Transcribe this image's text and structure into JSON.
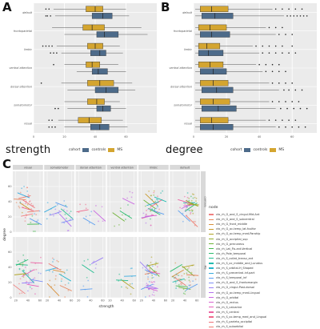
{
  "labels": {
    "panel_a": "A",
    "panel_b": "B",
    "panel_c": "C"
  },
  "legend_ab": {
    "title": "cohort",
    "items": [
      {
        "label": "controls",
        "color": "#4d6b8a"
      },
      {
        "label": "MS",
        "color": "#d4a530"
      }
    ]
  },
  "chart_data": [
    {
      "type": "box",
      "panel": "A",
      "xlabel": "strength",
      "categories": [
        "default",
        "frontoparietal",
        "limbic",
        "ventral attention",
        "dorsal attention",
        "somatomotor",
        "visual"
      ],
      "xlim": [
        0,
        80
      ],
      "xticks": [
        0,
        20,
        40,
        60
      ],
      "grid": true,
      "series": [
        {
          "name": "controls",
          "color": "#4d6b8a",
          "stats": [
            {
              "lo": 14,
              "q1": 38,
              "med": 45,
              "q3": 51,
              "hi": 62,
              "out": [
                11,
                9,
                8
              ]
            },
            {
              "lo": 20,
              "q1": 41,
              "med": 46,
              "q3": 55,
              "hi": 74,
              "out": []
            },
            {
              "lo": 18,
              "q1": 37,
              "med": 43,
              "q3": 47,
              "hi": 58,
              "out": [
                13,
                11,
                15
              ]
            },
            {
              "lo": 28,
              "q1": 38,
              "med": 42,
              "q3": 48,
              "hi": 60,
              "out": []
            },
            {
              "lo": 22,
              "q1": 40,
              "med": 47,
              "q3": 55,
              "hi": 66,
              "out": []
            },
            {
              "lo": 22,
              "q1": 41,
              "med": 45,
              "q3": 50,
              "hi": 60,
              "out": [
                14,
                16
              ]
            },
            {
              "lo": 20,
              "q1": 37,
              "med": 43,
              "q3": 49,
              "hi": 61,
              "out": [
                10,
                12,
                14
              ]
            }
          ]
        },
        {
          "name": "MS",
          "color": "#d4a530",
          "stats": [
            {
              "lo": 13,
              "q1": 34,
              "med": 40,
              "q3": 45,
              "hi": 60,
              "out": [
                10,
                8
              ]
            },
            {
              "lo": 12,
              "q1": 32,
              "med": 38,
              "q3": 46,
              "hi": 70,
              "out": []
            },
            {
              "lo": 15,
              "q1": 35,
              "med": 40,
              "q3": 45,
              "hi": 56,
              "out": [
                10,
                8,
                12,
                6
              ]
            },
            {
              "lo": 20,
              "q1": 34,
              "med": 38,
              "q3": 43,
              "hi": 55,
              "out": [
                13
              ]
            },
            {
              "lo": 18,
              "q1": 35,
              "med": 43,
              "q3": 52,
              "hi": 64,
              "out": [
                5
              ]
            },
            {
              "lo": 20,
              "q1": 35,
              "med": 41,
              "q3": 46,
              "hi": 56,
              "out": []
            },
            {
              "lo": 16,
              "q1": 29,
              "med": 36,
              "q3": 44,
              "hi": 58,
              "out": [
                12,
                10
              ]
            }
          ]
        }
      ]
    },
    {
      "type": "box",
      "panel": "B",
      "xlabel": "degree",
      "categories": [
        "default",
        "frontoparietal",
        "limbic",
        "ventral attention",
        "dorsal attention",
        "somatomotor",
        "visual"
      ],
      "xlim": [
        0,
        75
      ],
      "xticks": [
        0,
        20,
        40,
        60
      ],
      "grid": true,
      "series": [
        {
          "name": "controls",
          "color": "#4d6b8a",
          "stats": [
            {
              "lo": 1,
              "q1": 5,
              "med": 13,
              "q3": 24,
              "hi": 55,
              "out": [
                57,
                59,
                61,
                63,
                65,
                67,
                69
              ]
            },
            {
              "lo": 1,
              "q1": 4,
              "med": 11,
              "q3": 22,
              "hi": 50,
              "out": [
                52,
                56,
                60
              ]
            },
            {
              "lo": 1,
              "q1": 3,
              "med": 9,
              "q3": 18,
              "hi": 40,
              "out": [
                42,
                46,
                50,
                54,
                58,
                62
              ]
            },
            {
              "lo": 1,
              "q1": 4,
              "med": 12,
              "q3": 20,
              "hi": 42,
              "out": [
                44,
                48,
                52,
                56
              ]
            },
            {
              "lo": 1,
              "q1": 5,
              "med": 14,
              "q3": 24,
              "hi": 52,
              "out": [
                55,
                58,
                62,
                66
              ]
            },
            {
              "lo": 1,
              "q1": 5,
              "med": 15,
              "q3": 26,
              "hi": 50,
              "out": [
                53,
                57,
                61,
                65,
                69
              ]
            },
            {
              "lo": 1,
              "q1": 4,
              "med": 12,
              "q3": 24,
              "hi": 50,
              "out": [
                52,
                56,
                60,
                64,
                68
              ]
            }
          ]
        },
        {
          "name": "MS",
          "color": "#d4a530",
          "stats": [
            {
              "lo": 1,
              "q1": 4,
              "med": 11,
              "q3": 21,
              "hi": 48,
              "out": [
                50,
                54,
                58,
                62,
                66
              ]
            },
            {
              "lo": 1,
              "q1": 3,
              "med": 10,
              "q3": 20,
              "hi": 44,
              "out": [
                46,
                50,
                54
              ]
            },
            {
              "lo": 1,
              "q1": 3,
              "med": 8,
              "q3": 16,
              "hi": 36,
              "out": [
                38,
                42,
                46,
                50,
                54,
                60
              ]
            },
            {
              "lo": 1,
              "q1": 3,
              "med": 10,
              "q3": 18,
              "hi": 38,
              "out": [
                40,
                44,
                48,
                52
              ]
            },
            {
              "lo": 1,
              "q1": 4,
              "med": 12,
              "q3": 21,
              "hi": 46,
              "out": [
                48,
                52,
                56,
                60
              ]
            },
            {
              "lo": 1,
              "q1": 4,
              "med": 12,
              "q3": 22,
              "hi": 46,
              "out": [
                48,
                52,
                56,
                60,
                64
              ]
            },
            {
              "lo": 1,
              "q1": 4,
              "med": 11,
              "q3": 21,
              "hi": 44,
              "out": [
                46,
                50,
                54,
                58,
                62
              ]
            }
          ]
        }
      ]
    },
    {
      "type": "scatter",
      "panel": "C",
      "xlabel": "strength",
      "ylabel": "degree",
      "facets_top": [
        "visual",
        "somatomotor",
        "dorsal attention",
        "ventral attention",
        "limbic",
        "default"
      ],
      "facets_right": [
        "controls",
        "MS"
      ],
      "xlim": [
        15,
        65
      ],
      "ylim": [
        0,
        80
      ],
      "xticks": [
        20,
        40,
        60
      ],
      "yticks_top": [
        0,
        20,
        40,
        60
      ],
      "yticks_bottom": [
        0,
        20,
        40,
        60
      ],
      "legend_title": "node",
      "nodes": [
        {
          "label": "ctx_rh_G_and_S_cingul-Mid-Ant",
          "color": "#f08080"
        },
        {
          "label": "ctx_rh_G_and_S_subcentral",
          "color": "#e8865e"
        },
        {
          "label": "ctx_rh_G_front_middle",
          "color": "#d9903a"
        },
        {
          "label": "ctx_rh_G_oc-temp_lat-fusifor",
          "color": "#c99a2a"
        },
        {
          "label": "ctx_rh_G_oc-temp_med-Parahip",
          "color": "#b0a425"
        },
        {
          "label": "ctx_rh_G_occipital_sup",
          "color": "#93ad2a"
        },
        {
          "label": "ctx_rh_G_precuneus",
          "color": "#70b43a"
        },
        {
          "label": "ctx_rh_Lat_Fis-ant-Vertical",
          "color": "#44b94d"
        },
        {
          "label": "ctx_rh_Pole_temporal",
          "color": "#2bbc6e"
        },
        {
          "label": "ctx_rh_S_collat_transv_ant",
          "color": "#22bd8f"
        },
        {
          "label": "ctx_rh_S_oc_middle_and_Lunatus",
          "color": "#22bbaf"
        },
        {
          "label": "ctx_rh_S_orbital-H_Shaped",
          "color": "#28b5cb"
        },
        {
          "label": "ctx_rh_S_precentral-inf-part",
          "color": "#38abdf"
        },
        {
          "label": "ctx_rh_S_temporal_inf",
          "color": "#5a9df0"
        },
        {
          "label": "ctx_rh_G_and_S_frontomargin",
          "color": "#7d8ef5"
        },
        {
          "label": "ctx_rh_G_cingul-Post-dorsal",
          "color": "#9a7ff5"
        },
        {
          "label": "ctx_rh_G_oc-temp_med-Lingual",
          "color": "#b472ef"
        },
        {
          "label": "ctx_rh_G_orbital",
          "color": "#c968e2"
        },
        {
          "label": "ctx_rh_G_rectus",
          "color": "#d962cf"
        },
        {
          "label": "ctx_rh_S_calcarine",
          "color": "#e560b9"
        },
        {
          "label": "ctx_rh_S_central",
          "color": "#ec62a2"
        },
        {
          "label": "ctx_rh_S_oc-temp_med_and_Lingual",
          "color": "#f0688b"
        },
        {
          "label": "ctx_rh_S_parieto_occipital",
          "color": "#f07078"
        },
        {
          "label": "ctx_rh_S_suborbital",
          "color": "#ee7d70"
        }
      ]
    }
  ]
}
